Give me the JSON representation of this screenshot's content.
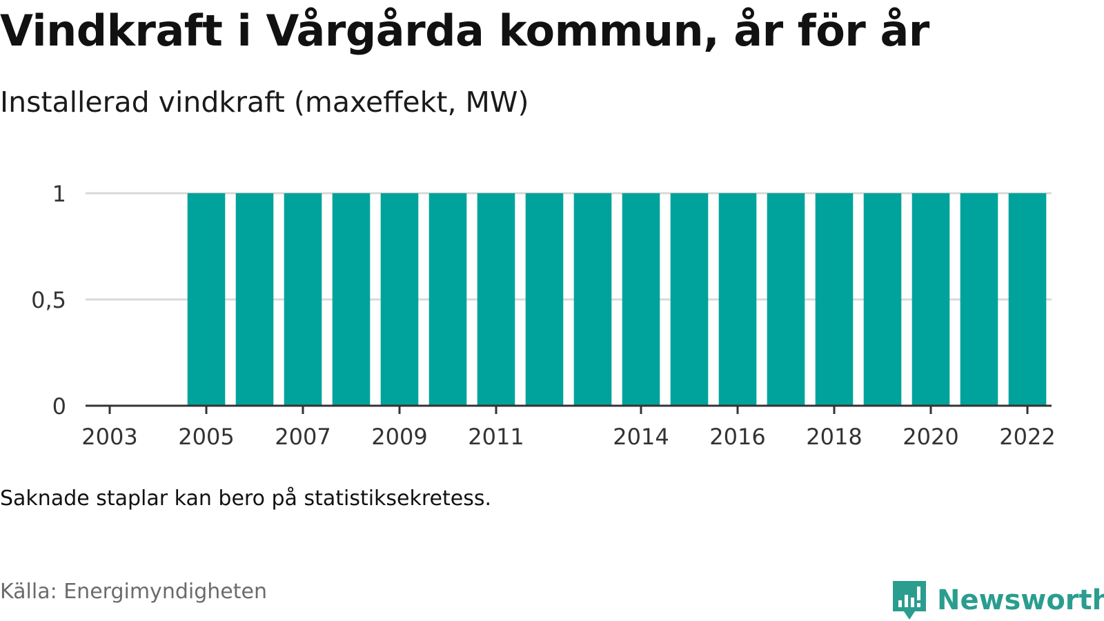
{
  "header": {
    "title": "Vindkraft i Vårgårda kommun, år för år",
    "subtitle": "Installerad vindkraft (maxeffekt, MW)"
  },
  "footer": {
    "note": "Saknade staplar kan bero på statistiksekretess.",
    "source": "Källa: Energimyndigheten",
    "brand": "Newsworthy"
  },
  "colors": {
    "bar": "#00a39b",
    "gridline": "#d9d9d9",
    "axis": "#333333",
    "brand": "#2a9d8f"
  },
  "chart_data": {
    "type": "bar",
    "categories": [
      "2003",
      "2004",
      "2005",
      "2006",
      "2007",
      "2008",
      "2009",
      "2010",
      "2011",
      "2012",
      "2013",
      "2014",
      "2015",
      "2016",
      "2017",
      "2018",
      "2019",
      "2020",
      "2021",
      "2022"
    ],
    "values": [
      null,
      null,
      1,
      1,
      1,
      1,
      1,
      1,
      1,
      1,
      1,
      1,
      1,
      1,
      1,
      1,
      1,
      1,
      1,
      1
    ],
    "x_tick_labels": [
      "2003",
      "2005",
      "2007",
      "2009",
      "2011",
      "2014",
      "2016",
      "2018",
      "2020",
      "2022"
    ],
    "y_ticks": [
      0,
      0.5,
      1
    ],
    "y_tick_labels": [
      "0",
      "0,5",
      "1"
    ],
    "ylim": [
      0,
      1
    ],
    "grid": true,
    "legend": "none",
    "xlabel": "",
    "ylabel": ""
  }
}
